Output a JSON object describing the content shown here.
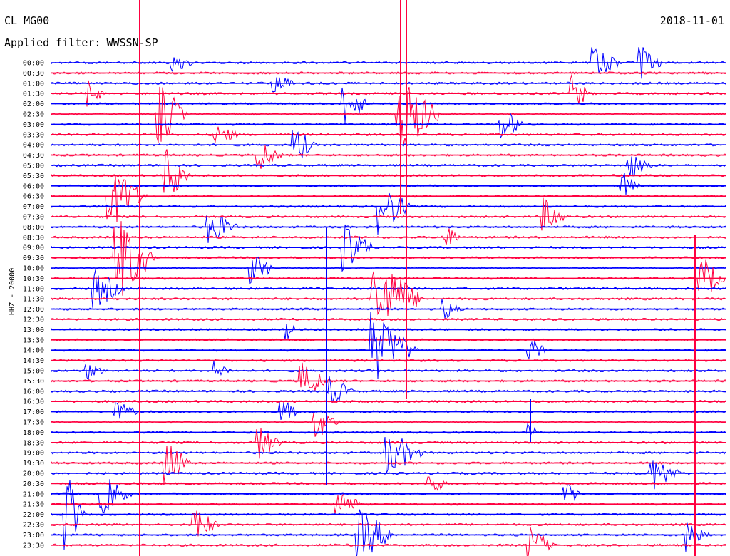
{
  "header": {
    "station": "CL MG00",
    "filter_label": "Applied filter:",
    "filter_name": "WWSSN-SP",
    "date": "2018-11-01"
  },
  "chart_data": {
    "type": "line",
    "ylabel": "HHZ - 20000",
    "time_labels": [
      "00:00",
      "00:30",
      "01:00",
      "01:30",
      "02:00",
      "02:30",
      "03:00",
      "03:30",
      "04:00",
      "04:30",
      "05:00",
      "05:30",
      "06:00",
      "06:30",
      "07:00",
      "07:30",
      "08:00",
      "08:30",
      "09:00",
      "09:30",
      "10:00",
      "10:30",
      "11:00",
      "11:30",
      "12:00",
      "12:30",
      "13:00",
      "13:30",
      "14:00",
      "14:30",
      "15:00",
      "15:30",
      "16:00",
      "16:30",
      "17:00",
      "17:30",
      "18:00",
      "18:30",
      "19:00",
      "19:30",
      "20:00",
      "20:30",
      "21:00",
      "21:30",
      "22:00",
      "22:30",
      "23:00",
      "23:30"
    ],
    "series_colors": [
      "#0000ff",
      "#ff0040"
    ],
    "grid": false
  }
}
